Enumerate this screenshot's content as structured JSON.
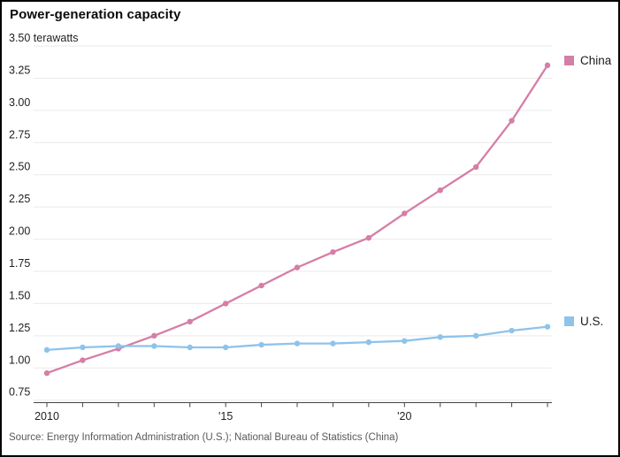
{
  "header": {
    "title": "Power-generation capacity"
  },
  "source": "Source: Energy Information Administration (U.S.); National Bureau of Statistics (China)",
  "legend": {
    "china": "China",
    "us": "U.S."
  },
  "colors": {
    "china": "#d57ea6",
    "us": "#8ec3ea",
    "grid": "#e9e9e9",
    "axis": "#444444",
    "tick_text": "#1f1f1f",
    "source_text": "#595959"
  },
  "chart_data": {
    "type": "line",
    "title": "Power-generation capacity",
    "unit_label": "terawatts",
    "x": [
      2010,
      2011,
      2012,
      2013,
      2014,
      2015,
      2016,
      2017,
      2018,
      2019,
      2020,
      2021,
      2022,
      2023,
      2024
    ],
    "series": [
      {
        "name": "China",
        "color": "#d57ea6",
        "values": [
          0.96,
          1.06,
          1.15,
          1.25,
          1.36,
          1.5,
          1.64,
          1.78,
          1.9,
          2.01,
          2.2,
          2.38,
          2.56,
          2.92,
          3.35
        ]
      },
      {
        "name": "U.S.",
        "color": "#8ec3ea",
        "values": [
          1.14,
          1.16,
          1.17,
          1.17,
          1.16,
          1.16,
          1.18,
          1.19,
          1.19,
          1.2,
          1.21,
          1.24,
          1.25,
          1.29,
          1.32
        ]
      }
    ],
    "ylim": [
      0.75,
      3.5
    ],
    "ytick_step": 0.25,
    "ytick_labels": [
      "0.75",
      "1.00",
      "1.25",
      "1.50",
      "1.75",
      "2.00",
      "2.25",
      "2.50",
      "2.75",
      "3.00",
      "3.25",
      "3.50 terawatts"
    ],
    "xtick_labels": [
      {
        "x": 2010,
        "label": "2010"
      },
      {
        "x": 2015,
        "label": "'15"
      },
      {
        "x": 2020,
        "label": "'20"
      }
    ],
    "grid": true,
    "legend_position": "right"
  }
}
